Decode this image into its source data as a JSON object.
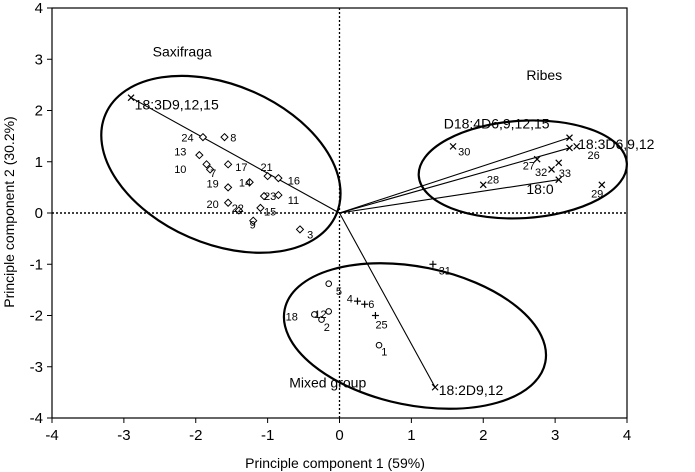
{
  "chart_data": {
    "type": "scatter",
    "xlabel": "Principle component 1  (59%)",
    "ylabel": "Principle component 2  (30.2%)",
    "xlim": [
      -4,
      4
    ],
    "ylim": [
      -4,
      4
    ],
    "xticks": [
      "-4",
      "-3",
      "-2",
      "-1",
      "0",
      "1",
      "2",
      "3",
      "4"
    ],
    "yticks": [
      "4",
      "3",
      "2",
      "1",
      "0",
      "-1",
      "-2",
      "-3",
      "-4"
    ],
    "reference_lines": "dotted lines at x=0 and y=0",
    "groups": [
      {
        "name": "Saxifraga",
        "cx": -1.65,
        "cy": 0.95,
        "rx": 1.75,
        "ry": 1.55,
        "angle": -0.41,
        "label_x": -2.6,
        "label_y": 3.05
      },
      {
        "name": "Ribes",
        "cx": 2.55,
        "cy": 0.85,
        "rx": 1.45,
        "ry": 0.95,
        "angle": 0.06,
        "label_x": 2.6,
        "label_y": 2.6
      },
      {
        "name": "Mixed group",
        "cx": 1.05,
        "cy": -2.4,
        "rx": 1.85,
        "ry": 1.35,
        "angle": -0.2,
        "label_x": -0.7,
        "label_y": -3.4
      }
    ],
    "loadings": [
      {
        "label": "18:3D9,12,15",
        "x": -2.9,
        "y": 2.25,
        "label_x": -2.85,
        "label_y": 2.02
      },
      {
        "label": "D18:4D6,9,12,15",
        "x": 3.2,
        "y": 1.47,
        "label_x": 1.45,
        "label_y": 1.65
      },
      {
        "label": "18:3D6,9,12",
        "x": 3.2,
        "y": 1.27,
        "label_x": 3.32,
        "label_y": 1.25
      },
      {
        "label": "18:0",
        "x": 3.05,
        "y": 0.65,
        "label_x": 2.6,
        "label_y": 0.37
      },
      {
        "label": "18:2D9,12",
        "x": 1.33,
        "y": -3.4,
        "label_x": 1.38,
        "label_y": -3.55
      }
    ],
    "series": [
      {
        "name": "Saxifraga",
        "marker": "diamond",
        "points": [
          {
            "label": "24",
            "x": -1.9,
            "y": 1.48,
            "lx": -2.2,
            "ly": 1.4
          },
          {
            "label": "8",
            "x": -1.6,
            "y": 1.48,
            "lx": -1.52,
            "ly": 1.4
          },
          {
            "label": "13",
            "x": -1.95,
            "y": 1.13,
            "lx": -2.3,
            "ly": 1.12
          },
          {
            "label": "10",
            "x": -1.85,
            "y": 0.95,
            "lx": -2.3,
            "ly": 0.78
          },
          {
            "label": "7",
            "x": -1.8,
            "y": 0.85,
            "lx": -1.8,
            "ly": 0.7
          },
          {
            "label": "17",
            "x": -1.55,
            "y": 0.95,
            "lx": -1.45,
            "ly": 0.82
          },
          {
            "label": "14",
            "x": -1.25,
            "y": 0.6,
            "lx": -1.4,
            "ly": 0.52
          },
          {
            "label": "21",
            "x": -1.0,
            "y": 0.72,
            "lx": -1.1,
            "ly": 0.82
          },
          {
            "label": "16",
            "x": -0.85,
            "y": 0.68,
            "lx": -0.72,
            "ly": 0.56
          },
          {
            "label": "19",
            "x": -1.55,
            "y": 0.5,
            "lx": -1.85,
            "ly": 0.5
          },
          {
            "label": "23",
            "x": -1.05,
            "y": 0.33,
            "lx": -1.05,
            "ly": 0.25
          },
          {
            "label": "11",
            "x": -0.85,
            "y": 0.35,
            "lx": -0.72,
            "ly": 0.18
          },
          {
            "label": "20",
            "x": -1.55,
            "y": 0.2,
            "lx": -1.85,
            "ly": 0.1
          },
          {
            "label": "22",
            "x": -1.4,
            "y": 0.05,
            "lx": -1.5,
            "ly": 0.02
          },
          {
            "label": "15",
            "x": -1.1,
            "y": 0.1,
            "lx": -1.05,
            "ly": -0.05
          },
          {
            "label": "9",
            "x": -1.2,
            "y": -0.15,
            "lx": -1.25,
            "ly": -0.3
          },
          {
            "label": "3",
            "x": -0.55,
            "y": -0.32,
            "lx": -0.45,
            "ly": -0.5
          }
        ]
      },
      {
        "name": "Ribes",
        "marker": "cross",
        "points": [
          {
            "label": "30",
            "x": 1.58,
            "y": 1.3,
            "lx": 1.65,
            "ly": 1.12
          },
          {
            "label": "28",
            "x": 2.0,
            "y": 0.55,
            "lx": 2.05,
            "ly": 0.58
          },
          {
            "label": "27",
            "x": 2.75,
            "y": 1.05,
            "lx": 2.55,
            "ly": 0.85
          },
          {
            "label": "32",
            "x": 2.95,
            "y": 0.85,
            "lx": 2.72,
            "ly": 0.72
          },
          {
            "label": "26",
            "x": 3.3,
            "y": 1.3,
            "lx": 3.45,
            "ly": 1.05
          },
          {
            "label": "33",
            "x": 3.05,
            "y": 0.98,
            "lx": 3.05,
            "ly": 0.7
          },
          {
            "label": "29",
            "x": 3.65,
            "y": 0.55,
            "lx": 3.5,
            "ly": 0.3
          }
        ]
      },
      {
        "name": "Mixed group",
        "marker": "mixed",
        "points": [
          {
            "label": "5",
            "x": -0.15,
            "y": -1.38,
            "lx": -0.05,
            "ly": -1.6,
            "marker": "circle"
          },
          {
            "label": "4",
            "x": 0.25,
            "y": -1.72,
            "lx": 0.1,
            "ly": -1.75,
            "marker": "cross"
          },
          {
            "label": "6",
            "x": 0.35,
            "y": -1.78,
            "lx": 0.4,
            "ly": -1.85,
            "marker": "cross"
          },
          {
            "label": "25",
            "x": 0.5,
            "y": -2.0,
            "lx": 0.5,
            "ly": -2.25,
            "marker": "cross"
          },
          {
            "label": "18",
            "x": -0.35,
            "y": -1.98,
            "lx": -0.75,
            "ly": -2.1,
            "marker": "circle"
          },
          {
            "label": "12",
            "x": -0.15,
            "y": -1.92,
            "lx": -0.35,
            "ly": -2.05,
            "marker": "circle"
          },
          {
            "label": "2",
            "x": -0.25,
            "y": -2.08,
            "lx": -0.22,
            "ly": -2.3,
            "marker": "circle"
          },
          {
            "label": "1",
            "x": 0.55,
            "y": -2.58,
            "lx": 0.58,
            "ly": -2.78,
            "marker": "circle"
          },
          {
            "label": "31",
            "x": 1.3,
            "y": -1.0,
            "lx": 1.38,
            "ly": -1.2,
            "marker": "cross"
          }
        ]
      }
    ]
  }
}
